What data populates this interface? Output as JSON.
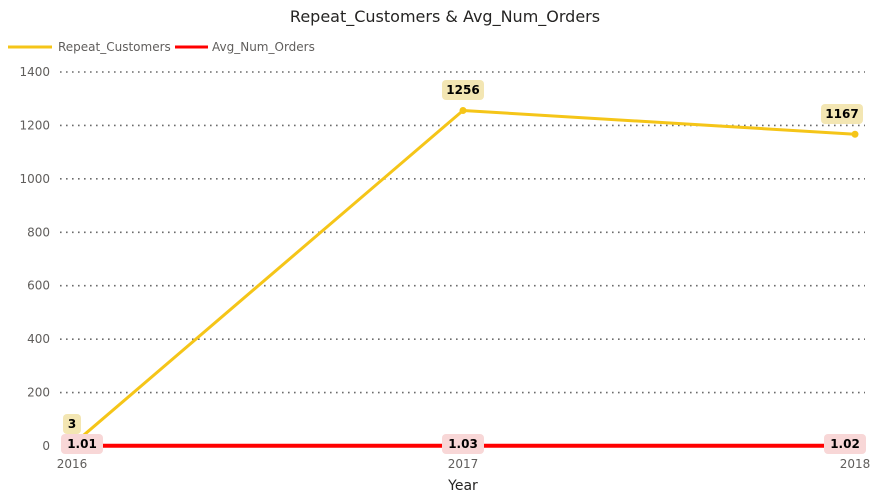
{
  "chart_data": {
    "type": "line",
    "title": "Repeat_Customers & Avg_Num_Orders",
    "xlabel": "Year",
    "ylabel": "",
    "categories": [
      "2016",
      "2017",
      "2018"
    ],
    "ylim": [
      0,
      1400
    ],
    "yticks": [
      0,
      200,
      400,
      600,
      800,
      1000,
      1200,
      1400
    ],
    "grid": true,
    "legend": "top-left",
    "series": [
      {
        "name": "Repeat_Customers",
        "values": [
          3,
          1256,
          1167
        ],
        "color": "#F5C518",
        "label_bg": "#F3E6B3"
      },
      {
        "name": "Avg_Num_Orders",
        "values": [
          1.01,
          1.03,
          1.02
        ],
        "color": "#FF0000",
        "label_bg": "#F8D7D7"
      }
    ]
  }
}
